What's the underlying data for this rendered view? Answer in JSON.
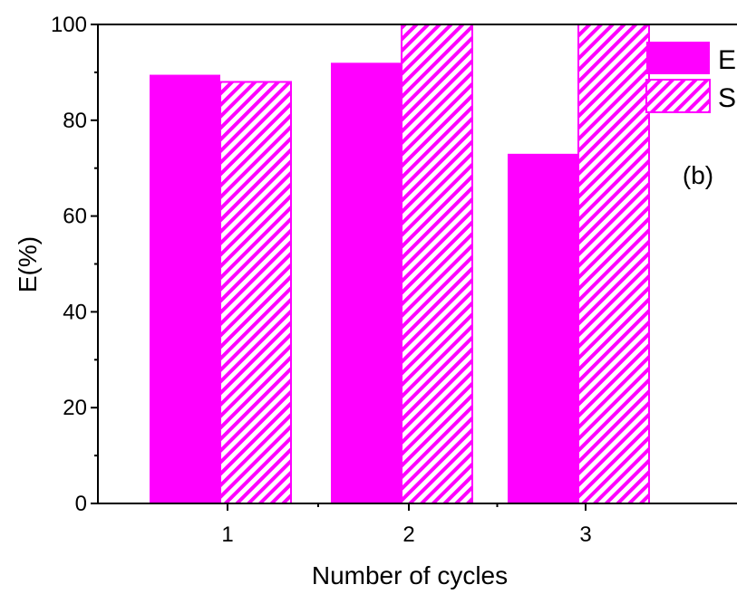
{
  "chart_data": {
    "type": "bar",
    "categories": [
      "1",
      "2",
      "3"
    ],
    "series": [
      {
        "name": "E",
        "values": [
          89.5,
          92,
          73
        ],
        "color": "#ff00ff",
        "fill": "solid"
      },
      {
        "name": "S",
        "values": [
          88,
          100,
          100
        ],
        "color": "#ff00ff",
        "fill": "hatched"
      }
    ],
    "title": "",
    "xlabel": "Number of cycles",
    "ylabel": "E(%)",
    "ylim": [
      0,
      100
    ],
    "yticks": [
      0,
      20,
      40,
      60,
      80,
      100
    ],
    "annotation": "(b)",
    "legend": "top-right",
    "grid": false
  }
}
